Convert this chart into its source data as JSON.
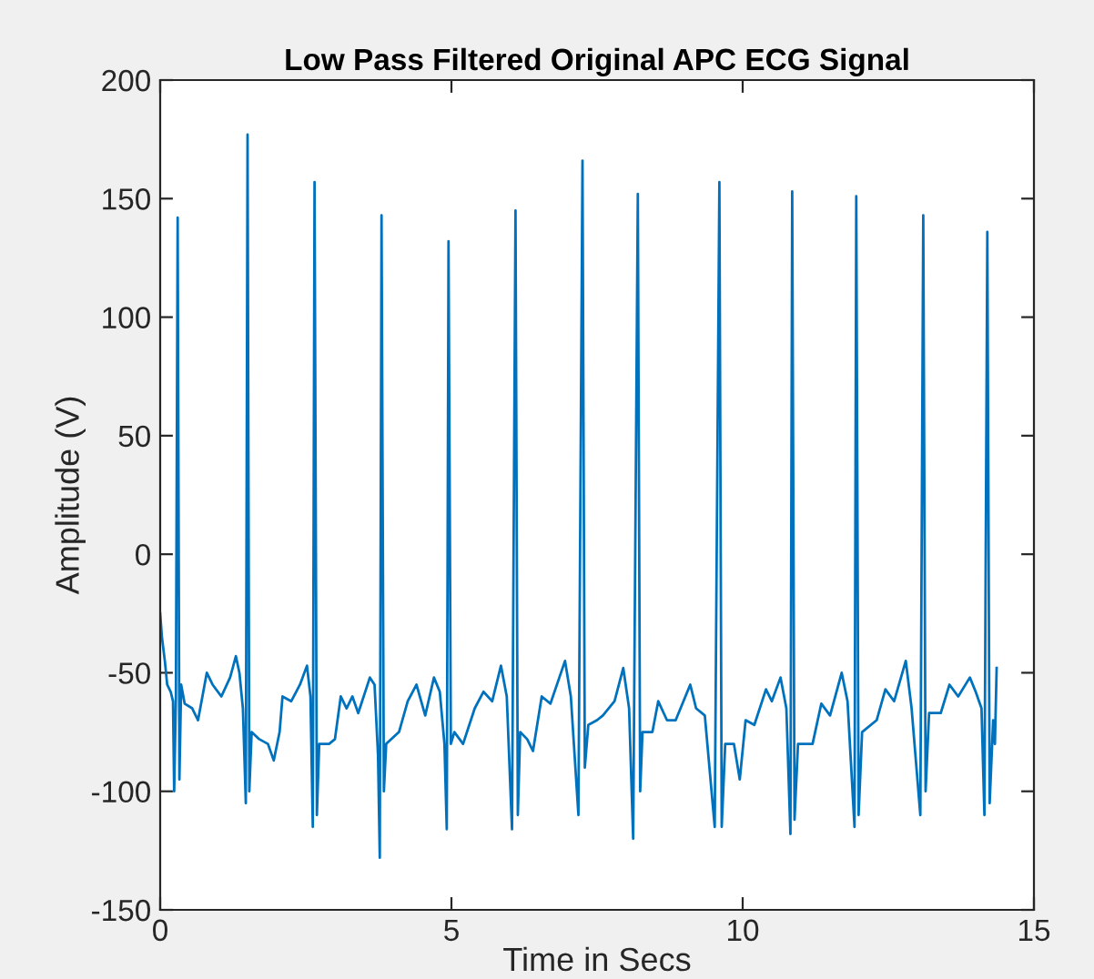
{
  "chart_data": {
    "type": "line",
    "title": "Low Pass Filtered Original APC ECG Signal",
    "xlabel": "Time in Secs",
    "ylabel": "Amplitude (V)",
    "xlim": [
      0,
      15
    ],
    "ylim": [
      -150,
      200
    ],
    "xticks": [
      0,
      5,
      10,
      15
    ],
    "yticks": [
      -150,
      -100,
      -50,
      0,
      50,
      100,
      150,
      200
    ],
    "grid": false,
    "legend": false,
    "series": [
      {
        "color": "#0072bd",
        "x": [
          0,
          0.03,
          0.08,
          0.12,
          0.18,
          0.22,
          0.24,
          0.27,
          0.3,
          0.33,
          0.36,
          0.42,
          0.55,
          0.65,
          0.8,
          0.9,
          1.05,
          1.2,
          1.3,
          1.36,
          1.42,
          1.47,
          1.5,
          1.53,
          1.57,
          1.7,
          1.85,
          1.95,
          2.05,
          2.1,
          2.25,
          2.4,
          2.52,
          2.58,
          2.62,
          2.65,
          2.69,
          2.73,
          2.9,
          3.0,
          3.1,
          3.2,
          3.3,
          3.4,
          3.6,
          3.68,
          3.74,
          3.77,
          3.8,
          3.84,
          3.88,
          4.1,
          4.25,
          4.4,
          4.55,
          4.7,
          4.8,
          4.88,
          4.92,
          4.95,
          4.99,
          5.05,
          5.2,
          5.4,
          5.55,
          5.7,
          5.85,
          5.95,
          6.04,
          6.1,
          6.14,
          6.18,
          6.3,
          6.4,
          6.55,
          6.7,
          6.95,
          7.05,
          7.18,
          7.25,
          7.29,
          7.35,
          7.5,
          7.6,
          7.8,
          7.95,
          8.05,
          8.12,
          8.2,
          8.24,
          8.28,
          8.45,
          8.55,
          8.7,
          8.85,
          9.1,
          9.2,
          9.35,
          9.52,
          9.6,
          9.64,
          9.7,
          9.85,
          9.95,
          10.05,
          10.2,
          10.4,
          10.5,
          10.65,
          10.75,
          10.82,
          10.85,
          10.89,
          10.95,
          11.2,
          11.35,
          11.5,
          11.7,
          11.8,
          11.92,
          11.95,
          11.99,
          12.05,
          12.3,
          12.45,
          12.6,
          12.8,
          12.9,
          13.05,
          13.1,
          13.14,
          13.2,
          13.4,
          13.55,
          13.7,
          13.9,
          14.0,
          14.1,
          14.15,
          14.2,
          14.24,
          14.3,
          14.33,
          14.36
        ],
        "values": [
          -25,
          -35,
          -45,
          -55,
          -58,
          -62,
          -100,
          -60,
          142,
          -95,
          -55,
          -63,
          -65,
          -70,
          -50,
          -55,
          -60,
          -52,
          -43,
          -50,
          -65,
          -105,
          177,
          -100,
          -75,
          -78,
          -80,
          -87,
          -75,
          -60,
          -62,
          -55,
          -47,
          -60,
          -115,
          157,
          -110,
          -80,
          -80,
          -78,
          -60,
          -65,
          -60,
          -67,
          -52,
          -55,
          -85,
          -128,
          143,
          -100,
          -80,
          -75,
          -62,
          -55,
          -68,
          -52,
          -58,
          -80,
          -116,
          132,
          -80,
          -75,
          -80,
          -65,
          -58,
          -62,
          -47,
          -60,
          -116,
          145,
          -110,
          -75,
          -78,
          -83,
          -60,
          -63,
          -45,
          -60,
          -110,
          166,
          -90,
          -72,
          -70,
          -68,
          -62,
          -48,
          -65,
          -120,
          152,
          -100,
          -75,
          -75,
          -62,
          -70,
          -70,
          -55,
          -65,
          -68,
          -115,
          157,
          -115,
          -80,
          -80,
          -95,
          -70,
          -72,
          -57,
          -62,
          -52,
          -65,
          -118,
          153,
          -112,
          -80,
          -80,
          -63,
          -68,
          -50,
          -62,
          -115,
          151,
          -110,
          -75,
          -70,
          -57,
          -62,
          -45,
          -65,
          -110,
          143,
          -100,
          -67,
          -67,
          -55,
          -60,
          -52,
          -58,
          -65,
          -110,
          136,
          -105,
          -70,
          -80,
          -48
        ]
      }
    ]
  }
}
